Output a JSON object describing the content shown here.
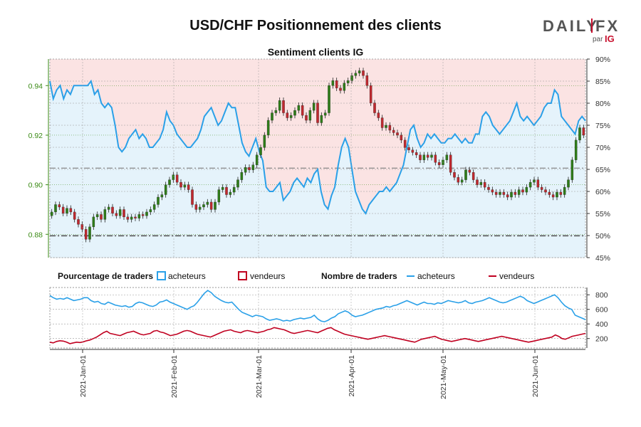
{
  "header": {
    "title": "USD/CHF Positionnement des clients",
    "subtitle": "Sentiment clients IG"
  },
  "logo": {
    "text_left": "DAILY",
    "text_right": "FX",
    "par": "par",
    "ig": "IG"
  },
  "legend": {
    "pct_head": "Pourcentage de traders",
    "pct_buyers": "acheteurs",
    "pct_sellers": "vendeurs",
    "count_head": "Nombre de traders",
    "count_buyers": "acheteurs",
    "count_sellers": "vendeurs"
  },
  "colors": {
    "price_axis": "#3a8a14",
    "buyers": "#2aa0e8",
    "sellers": "#c00020",
    "candle_up": "#2e7d18",
    "candle_down": "#c0282e",
    "pct_fill_buyers": "#e5f3fb",
    "pct_fill_sellers": "#fbe3e3",
    "grid": "#9a9a9a"
  },
  "chart_data": [
    {
      "type": "candlestick+line",
      "description_series": [
        "USD/CHF",
        "acheteurs",
        "vendeurs"
      ],
      "price_axis": {
        "ticks": [
          0.88,
          0.9,
          0.92,
          0.94
        ],
        "labels": [
          "0.88",
          "0.90",
          "0.92",
          "0.94"
        ],
        "range": [
          0.8706,
          0.9507
        ]
      },
      "pct_axis": {
        "ticks": [
          45,
          50,
          55,
          60,
          65,
          70,
          75,
          80,
          85,
          90
        ],
        "labels": [
          "45%",
          "50%",
          "55%",
          "60%",
          "65%",
          "70%",
          "75%",
          "80%",
          "85%",
          "90%"
        ],
        "range": [
          45,
          90
        ]
      },
      "reference_lines": {
        "dash_dot_upper": 0.9067,
        "dash_dot_lower": 0.8794
      },
      "price_close": [
        0.889,
        0.892,
        0.891,
        0.8885,
        0.8905,
        0.889,
        0.886,
        0.884,
        0.882,
        0.878,
        0.883,
        0.887,
        0.888,
        0.886,
        0.89,
        0.891,
        0.8885,
        0.8875,
        0.89,
        0.887,
        0.886,
        0.887,
        0.8865,
        0.888,
        0.8875,
        0.889,
        0.89,
        0.892,
        0.895,
        0.896,
        0.9,
        0.902,
        0.904,
        0.901,
        0.899,
        0.9,
        0.898,
        0.892,
        0.89,
        0.891,
        0.892,
        0.893,
        0.89,
        0.893,
        0.898,
        0.899,
        0.896,
        0.897,
        0.899,
        0.902,
        0.905,
        0.907,
        0.906,
        0.908,
        0.912,
        0.915,
        0.92,
        0.926,
        0.929,
        0.93,
        0.934,
        0.929,
        0.927,
        0.928,
        0.93,
        0.932,
        0.928,
        0.926,
        0.93,
        0.933,
        0.925,
        0.928,
        0.929,
        0.94,
        0.942,
        0.939,
        0.938,
        0.941,
        0.942,
        0.944,
        0.945,
        0.946,
        0.944,
        0.94,
        0.933,
        0.929,
        0.927,
        0.923,
        0.924,
        0.922,
        0.921,
        0.92,
        0.918,
        0.915,
        0.914,
        0.913,
        0.912,
        0.91,
        0.912,
        0.911,
        0.912,
        0.909,
        0.908,
        0.91,
        0.912,
        0.905,
        0.903,
        0.901,
        0.902,
        0.906,
        0.905,
        0.902,
        0.9,
        0.901,
        0.899,
        0.898,
        0.897,
        0.896,
        0.897,
        0.896,
        0.895,
        0.897,
        0.896,
        0.898,
        0.897,
        0.899,
        0.901,
        0.902,
        0.899,
        0.898,
        0.897,
        0.896,
        0.895,
        0.897,
        0.896,
        0.899,
        0.902,
        0.91,
        0.918,
        0.923,
        0.92
      ],
      "pct_buyers": [
        85,
        81,
        83,
        84,
        81,
        83,
        82,
        84,
        84,
        84,
        84,
        84,
        85,
        82,
        83,
        80,
        79,
        80,
        79,
        75,
        70,
        69,
        70,
        72,
        73,
        74,
        72,
        73,
        72,
        70,
        70,
        71,
        72,
        74,
        78,
        76,
        75,
        73,
        72,
        71,
        70,
        70,
        71,
        72,
        74,
        77,
        78,
        79,
        77,
        75,
        76,
        78,
        80,
        79,
        79,
        75,
        71,
        69,
        68,
        70,
        72,
        69,
        67,
        61,
        60,
        60,
        61,
        62,
        58,
        59,
        60,
        62,
        63,
        62,
        61,
        63,
        62,
        64,
        65,
        60,
        57,
        56,
        59,
        61,
        66,
        70,
        72,
        70,
        65,
        60,
        58,
        56,
        55,
        57,
        58,
        59,
        60,
        60,
        61,
        60,
        61,
        62,
        64,
        66,
        70,
        74,
        75,
        72,
        70,
        71,
        73,
        72,
        73,
        72,
        71,
        71,
        72,
        72,
        73,
        72,
        71,
        72,
        71,
        71,
        73,
        73,
        77,
        78,
        77,
        75,
        74,
        73,
        74,
        75,
        76,
        78,
        80,
        77,
        76,
        77,
        76,
        75,
        76,
        77,
        79,
        80,
        80,
        83,
        82,
        77,
        76,
        75,
        74,
        73,
        76,
        77,
        76
      ],
      "count_buyers": [
        790,
        760,
        740,
        750,
        740,
        760,
        740,
        720,
        730,
        740,
        760,
        760,
        720,
        700,
        710,
        680,
        670,
        700,
        680,
        660,
        650,
        640,
        650,
        630,
        640,
        680,
        700,
        690,
        670,
        650,
        640,
        660,
        700,
        710,
        730,
        700,
        680,
        660,
        640,
        620,
        600,
        630,
        650,
        700,
        760,
        820,
        860,
        830,
        780,
        750,
        720,
        700,
        690,
        700,
        650,
        600,
        560,
        540,
        520,
        500,
        520,
        510,
        500,
        470,
        450,
        460,
        470,
        460,
        440,
        450,
        440,
        460,
        470,
        480,
        470,
        480,
        490,
        520,
        470,
        440,
        430,
        450,
        480,
        500,
        540,
        560,
        580,
        560,
        520,
        500,
        510,
        520,
        540,
        560,
        580,
        600,
        610,
        620,
        640,
        630,
        650,
        660,
        680,
        700,
        720,
        700,
        680,
        660,
        680,
        700,
        680,
        680,
        670,
        690,
        680,
        700,
        720,
        710,
        700,
        690,
        700,
        720,
        690,
        680,
        700,
        710,
        720,
        740,
        760,
        740,
        720,
        700,
        690,
        700,
        720,
        740,
        760,
        780,
        760,
        720,
        700,
        680,
        700,
        720,
        740,
        760,
        780,
        800,
        760,
        700,
        650,
        620,
        600,
        520,
        500,
        480,
        460
      ],
      "count_sellers": [
        150,
        140,
        160,
        170,
        165,
        150,
        130,
        140,
        150,
        145,
        155,
        170,
        180,
        200,
        220,
        250,
        280,
        300,
        270,
        260,
        250,
        240,
        260,
        280,
        290,
        300,
        280,
        260,
        250,
        260,
        270,
        300,
        310,
        290,
        280,
        260,
        240,
        250,
        260,
        280,
        300,
        310,
        300,
        280,
        260,
        250,
        240,
        230,
        220,
        240,
        260,
        280,
        300,
        310,
        320,
        300,
        290,
        280,
        300,
        310,
        300,
        290,
        280,
        290,
        300,
        320,
        330,
        350,
        340,
        330,
        320,
        300,
        280,
        270,
        280,
        290,
        300,
        310,
        300,
        290,
        280,
        300,
        320,
        340,
        350,
        320,
        300,
        280,
        260,
        250,
        240,
        230,
        220,
        210,
        200,
        190,
        200,
        210,
        220,
        230,
        240,
        230,
        220,
        210,
        200,
        190,
        180,
        170,
        160,
        150,
        170,
        190,
        200,
        210,
        220,
        230,
        210,
        190,
        180,
        170,
        160,
        170,
        180,
        190,
        200,
        190,
        180,
        170,
        160,
        170,
        180,
        190,
        200,
        210,
        220,
        230,
        220,
        210,
        200,
        190,
        180,
        170,
        160,
        150,
        160,
        170,
        180,
        190,
        200,
        210,
        220,
        250,
        230,
        200,
        190,
        210,
        230,
        240,
        250,
        260,
        270
      ],
      "count_axis": {
        "ticks": [
          200,
          400,
          600,
          800
        ],
        "labels": [
          "200",
          "400",
          "600",
          "800"
        ],
        "range": [
          70,
          900
        ]
      },
      "x_axis": {
        "labels": [
          "2021-Jan-01",
          "2021-Feb-01",
          "2021-Mar-01",
          "2021-Apr-01",
          "2021-May-01",
          "2021-Jun-01"
        ]
      }
    }
  ]
}
